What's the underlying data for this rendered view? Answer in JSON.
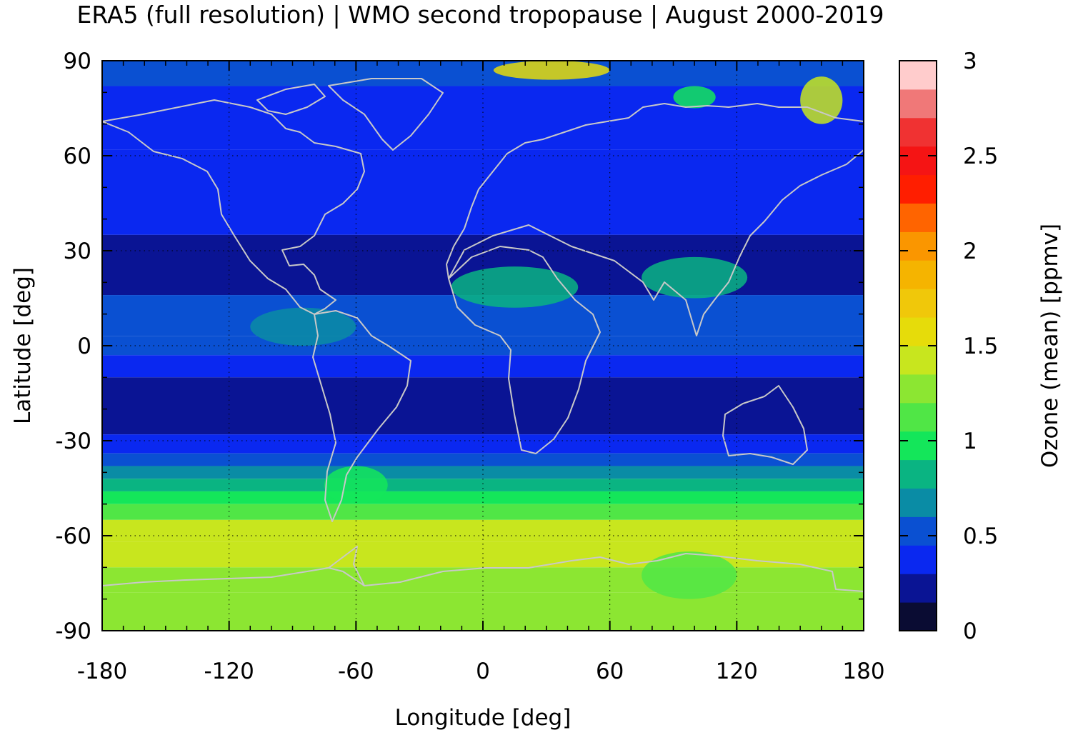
{
  "title": "ERA5 (full resolution) | WMO second tropopause | August 2000-2019",
  "chart_data": {
    "type": "heatmap",
    "title": "ERA5 (full resolution) | WMO second tropopause | August 2000-2019",
    "xlabel": "Longitude [deg]",
    "ylabel": "Latitude [deg]",
    "colorbar_label": "Ozone (mean) [ppmv]",
    "xlim": [
      -180,
      180
    ],
    "ylim": [
      -90,
      90
    ],
    "x_ticks": [
      "-180",
      "-120",
      "-60",
      "0",
      "60",
      "120",
      "180"
    ],
    "y_ticks": [
      "90",
      "60",
      "30",
      "0",
      "-30",
      "-60",
      "-90"
    ],
    "colorbar_range": [
      0,
      3
    ],
    "colorbar_ticks": [
      "3",
      "2.5",
      "2",
      "1.5",
      "1",
      "0.5",
      "0"
    ],
    "grid": true,
    "colorbar_levels": [
      {
        "from": 0.0,
        "to": 0.15,
        "color": "#0a0c33"
      },
      {
        "from": 0.15,
        "to": 0.3,
        "color": "#0a1494"
      },
      {
        "from": 0.3,
        "to": 0.45,
        "color": "#0a28f0"
      },
      {
        "from": 0.45,
        "to": 0.6,
        "color": "#0a50d2"
      },
      {
        "from": 0.6,
        "to": 0.75,
        "color": "#0a8ca5"
      },
      {
        "from": 0.75,
        "to": 0.9,
        "color": "#0ab482"
      },
      {
        "from": 0.9,
        "to": 1.05,
        "color": "#14e65a"
      },
      {
        "from": 1.05,
        "to": 1.2,
        "color": "#50e646"
      },
      {
        "from": 1.2,
        "to": 1.35,
        "color": "#8ce632"
      },
      {
        "from": 1.35,
        "to": 1.5,
        "color": "#c8e61e"
      },
      {
        "from": 1.5,
        "to": 1.65,
        "color": "#e6dc0a"
      },
      {
        "from": 1.65,
        "to": 1.8,
        "color": "#f0c80a"
      },
      {
        "from": 1.8,
        "to": 1.95,
        "color": "#f5b400"
      },
      {
        "from": 1.95,
        "to": 2.1,
        "color": "#fa9600"
      },
      {
        "from": 2.1,
        "to": 2.25,
        "color": "#ff6400"
      },
      {
        "from": 2.25,
        "to": 2.4,
        "color": "#ff1e00"
      },
      {
        "from": 2.4,
        "to": 2.55,
        "color": "#f51414"
      },
      {
        "from": 2.55,
        "to": 2.7,
        "color": "#f03232"
      },
      {
        "from": 2.7,
        "to": 2.85,
        "color": "#f07878"
      },
      {
        "from": 2.85,
        "to": 3.0,
        "color": "#ffcccc"
      }
    ],
    "zonal_bands": [
      {
        "lat": [
          82,
          90
        ],
        "value": 0.5
      },
      {
        "lat": [
          62,
          82
        ],
        "value": 0.38
      },
      {
        "lat": [
          35,
          62
        ],
        "value": 0.37
      },
      {
        "lat": [
          16,
          35
        ],
        "value": 0.22
      },
      {
        "lat": [
          3,
          16
        ],
        "value": 0.45
      },
      {
        "lat": [
          -3,
          3
        ],
        "value": 0.55
      },
      {
        "lat": [
          -10,
          -3
        ],
        "value": 0.4
      },
      {
        "lat": [
          -28,
          -10
        ],
        "value": 0.22
      },
      {
        "lat": [
          -34,
          -28
        ],
        "value": 0.38
      },
      {
        "lat": [
          -38,
          -34
        ],
        "value": 0.55
      },
      {
        "lat": [
          -42,
          -38
        ],
        "value": 0.7
      },
      {
        "lat": [
          -46,
          -42
        ],
        "value": 0.85
      },
      {
        "lat": [
          -50,
          -46
        ],
        "value": 1.0
      },
      {
        "lat": [
          -55,
          -50
        ],
        "value": 1.15
      },
      {
        "lat": [
          -62,
          -55
        ],
        "value": 1.4
      },
      {
        "lat": [
          -70,
          -62
        ],
        "value": 1.35
      },
      {
        "lat": [
          -78,
          -70
        ],
        "value": 1.25
      },
      {
        "lat": [
          -90,
          -78
        ],
        "value": 1.32
      }
    ],
    "features": [
      {
        "lon": [
          -15,
          45
        ],
        "lat": [
          12,
          25
        ],
        "value": 0.85
      },
      {
        "lon": [
          75,
          125
        ],
        "lat": [
          15,
          28
        ],
        "value": 0.75
      },
      {
        "lon": [
          -110,
          -60
        ],
        "lat": [
          0,
          12
        ],
        "value": 0.6
      },
      {
        "lon": [
          -75,
          -45
        ],
        "lat": [
          -50,
          -38
        ],
        "value": 0.95
      },
      {
        "lon": [
          75,
          120
        ],
        "lat": [
          -80,
          -65
        ],
        "value": 1.05
      },
      {
        "lon": [
          5,
          60
        ],
        "lat": [
          84,
          90
        ],
        "value": 1.5
      },
      {
        "lon": [
          90,
          110
        ],
        "lat": [
          75,
          82
        ],
        "value": 0.9
      },
      {
        "lon": [
          150,
          170
        ],
        "lat": [
          70,
          85
        ],
        "value": 1.4
      }
    ]
  }
}
